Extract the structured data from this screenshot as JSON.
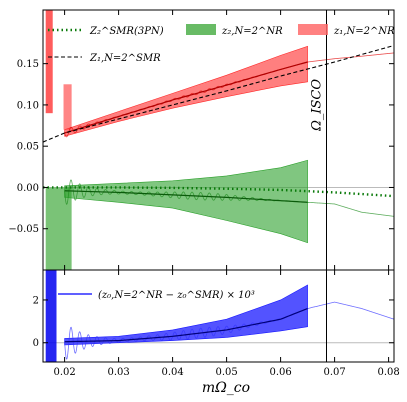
{
  "chart_data": [
    {
      "type": "line",
      "panel": "top",
      "xlabel": "mΩ_co",
      "ylabel": "",
      "xlim": [
        0.016,
        0.081
      ],
      "ylim": [
        -0.1,
        0.215
      ],
      "yticks": [
        -0.05,
        0.0,
        0.05,
        0.1,
        0.15
      ],
      "ytick_labels": [
        "−0.05",
        "0.00",
        "0.05",
        "0.10",
        "0.15"
      ],
      "grid": false,
      "legend_location": "top",
      "vline": {
        "x": 0.0685,
        "label": "Ω_ISCO"
      },
      "legend": [
        {
          "key": "z2smr",
          "label": "Z₂^SMR(3PN)",
          "style": "dotted",
          "color": "#0a7a0a"
        },
        {
          "key": "z1smr",
          "label": "Z₁,N=2^SMR",
          "style": "dashed",
          "color": "#000000"
        },
        {
          "key": "z2nr",
          "label": "z₂,N=2^NR",
          "style": "band",
          "color": "#4daf4a"
        },
        {
          "key": "z1nr",
          "label": "z₁,N=2^NR",
          "style": "band",
          "color": "#ff6b6b"
        }
      ],
      "series": [
        {
          "name": "Z₁,N=2^SMR",
          "x": [
            0.016,
            0.02,
            0.03,
            0.04,
            0.05,
            0.06,
            0.07,
            0.081
          ],
          "y": [
            0.055,
            0.066,
            0.083,
            0.1,
            0.117,
            0.135,
            0.152,
            0.172
          ]
        },
        {
          "name": "Z₂^SMR(3PN)",
          "x": [
            0.016,
            0.02,
            0.03,
            0.04,
            0.05,
            0.06,
            0.065,
            0.07,
            0.075,
            0.081
          ],
          "y": [
            0.0,
            0.0,
            0.0,
            -0.0005,
            -0.0015,
            -0.003,
            -0.0045,
            -0.006,
            -0.008,
            -0.0105
          ]
        },
        {
          "name": "z₁,N=2^NR",
          "x": [
            0.02,
            0.03,
            0.04,
            0.05,
            0.06,
            0.065,
            0.07,
            0.075,
            0.081
          ],
          "y": [
            0.066,
            0.086,
            0.106,
            0.124,
            0.143,
            0.152,
            0.156,
            0.159,
            0.163
          ],
          "band_lower": [
            0.062,
            0.08,
            0.096,
            0.11,
            0.123,
            0.128
          ],
          "band_upper": [
            0.07,
            0.092,
            0.114,
            0.136,
            0.16,
            0.171
          ]
        },
        {
          "name": "z₂,N=2^NR",
          "x": [
            0.02,
            0.03,
            0.04,
            0.05,
            0.06,
            0.065,
            0.07,
            0.075,
            0.081
          ],
          "y": [
            -0.004,
            -0.006,
            -0.009,
            -0.012,
            -0.016,
            -0.018,
            -0.02,
            -0.03,
            -0.035
          ],
          "band_lower": [
            -0.012,
            -0.018,
            -0.025,
            -0.04,
            -0.056,
            -0.067
          ],
          "band_upper": [
            0.002,
            0.005,
            0.008,
            0.014,
            0.024,
            0.033
          ]
        }
      ]
    },
    {
      "type": "line",
      "panel": "bottom",
      "xlabel": "mΩ_co",
      "ylabel": "",
      "xlim": [
        0.016,
        0.081
      ],
      "ylim": [
        -0.9,
        3.4
      ],
      "xticks": [
        0.02,
        0.03,
        0.04,
        0.05,
        0.06,
        0.07,
        0.08
      ],
      "xtick_labels": [
        "0.02",
        "0.03",
        "0.04",
        "0.05",
        "0.06",
        "0.07",
        "0.08"
      ],
      "yticks": [
        0,
        2
      ],
      "ytick_labels": [
        "0",
        "2"
      ],
      "hline": 0,
      "grid": false,
      "legend_location": "top-left",
      "legend": [
        {
          "key": "z0diff",
          "label": "(z₀,N=2^NR − z₀^SMR) × 10³",
          "style": "solid",
          "color": "#0000ff"
        }
      ],
      "series": [
        {
          "name": "(z₀,N=2^NR − z₀^SMR) × 10³",
          "x": [
            0.02,
            0.03,
            0.04,
            0.05,
            0.06,
            0.065,
            0.07,
            0.075,
            0.081
          ],
          "y": [
            0.05,
            0.1,
            0.3,
            0.6,
            1.1,
            1.6,
            1.9,
            1.6,
            1.1
          ],
          "band_lower": [
            -0.1,
            0.0,
            0.1,
            0.25,
            0.55,
            0.75
          ],
          "band_upper": [
            0.2,
            0.3,
            0.6,
            1.1,
            2.0,
            2.7
          ]
        }
      ]
    }
  ]
}
